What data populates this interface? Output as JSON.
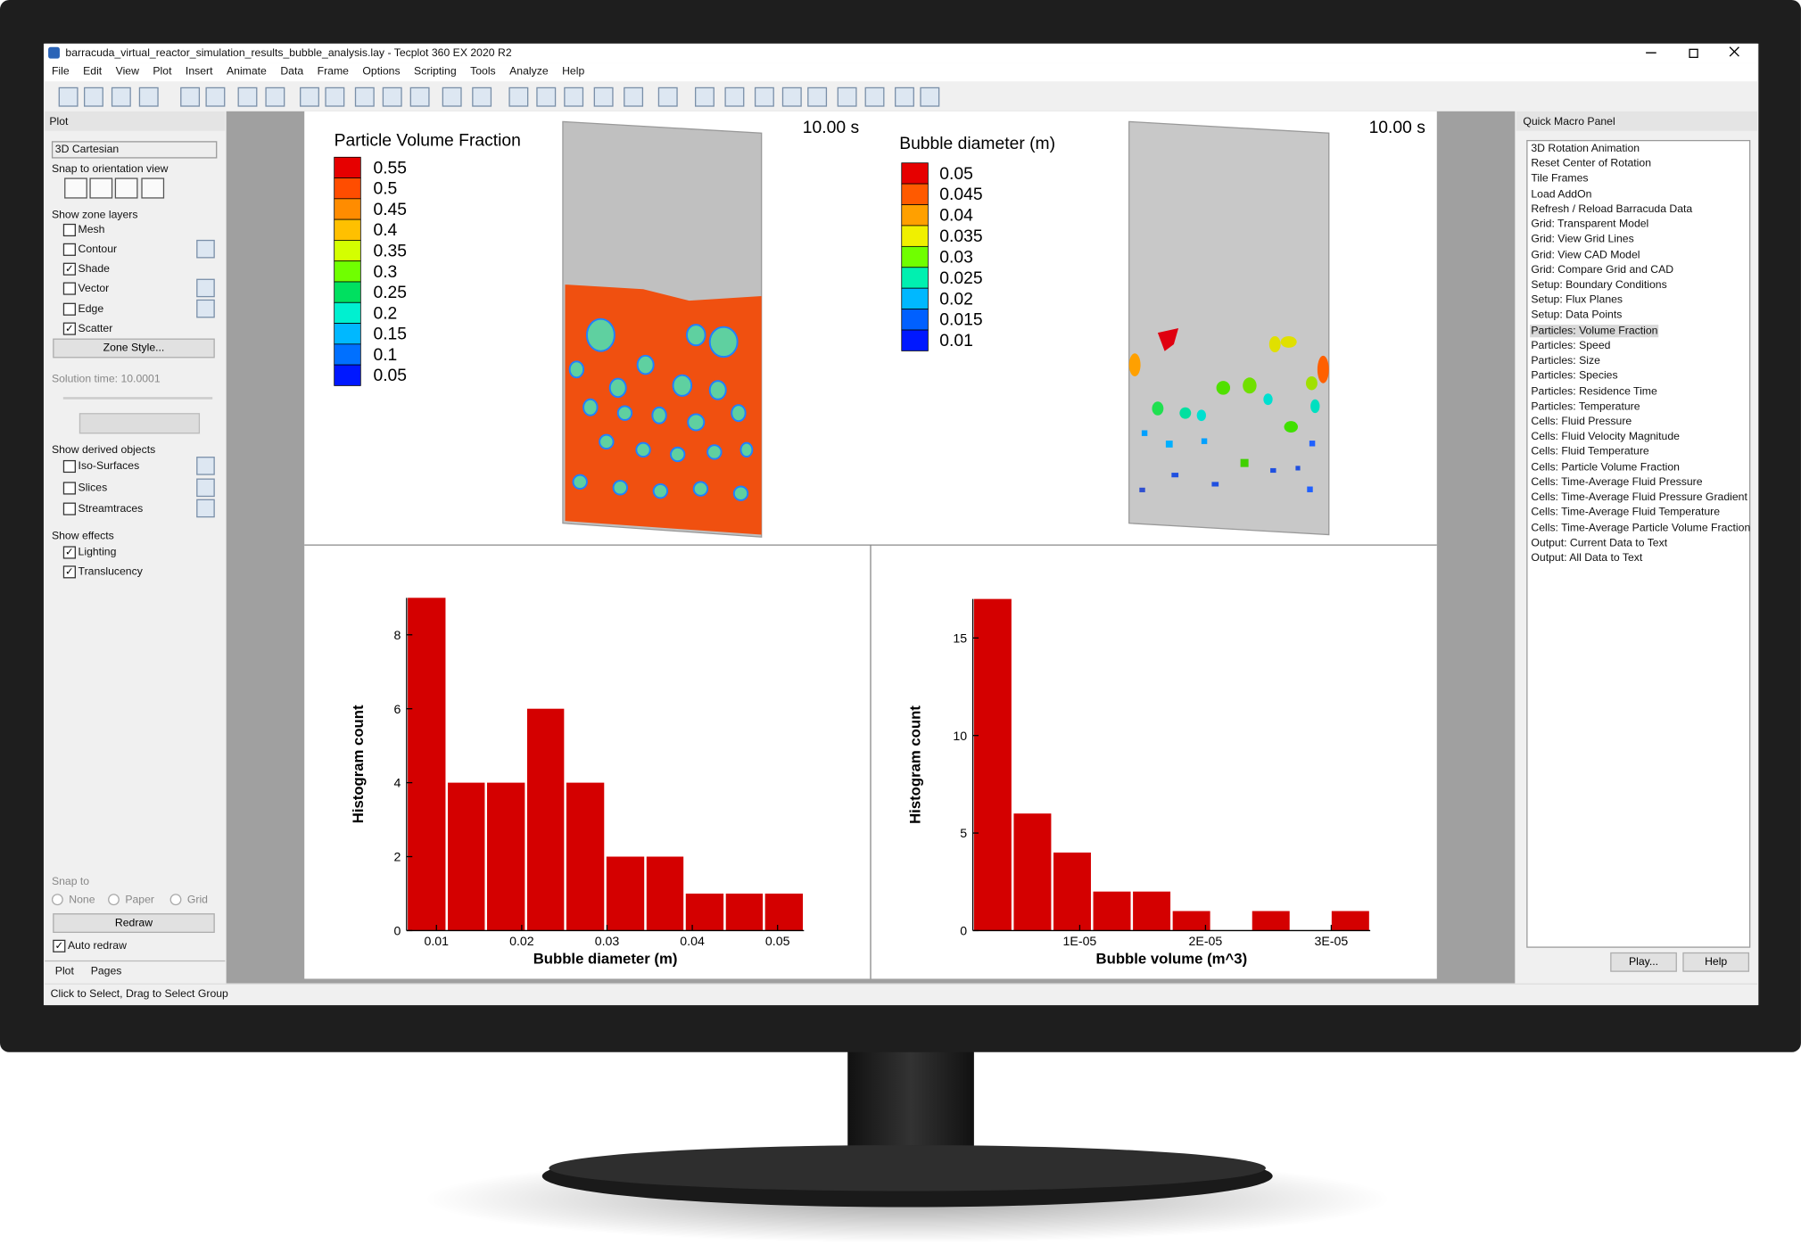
{
  "window": {
    "title": "barracuda_virtual_reactor_simulation_results_bubble_analysis.lay - Tecplot 360 EX 2020 R2"
  },
  "menu": [
    "File",
    "Edit",
    "View",
    "Plot",
    "Insert",
    "Animate",
    "Data",
    "Frame",
    "Options",
    "Scripting",
    "Tools",
    "Analyze",
    "Help"
  ],
  "plot_panel": {
    "title": "Plot",
    "coord_system": "3D Cartesian",
    "snap_label": "Snap to orientation view",
    "zone_layers_label": "Show zone layers",
    "zone_layers": [
      {
        "label": "Mesh",
        "checked": false
      },
      {
        "label": "Contour",
        "checked": false
      },
      {
        "label": "Shade",
        "checked": true
      },
      {
        "label": "Vector",
        "checked": false
      },
      {
        "label": "Edge",
        "checked": false
      },
      {
        "label": "Scatter",
        "checked": true
      }
    ],
    "zone_style": "Zone Style...",
    "solution_time": "Solution time: 10.0001",
    "derived_label": "Show derived objects",
    "derived": [
      {
        "label": "Iso-Surfaces",
        "checked": false
      },
      {
        "label": "Slices",
        "checked": false
      },
      {
        "label": "Streamtraces",
        "checked": false
      }
    ],
    "effects_label": "Show effects",
    "effects": [
      {
        "label": "Lighting",
        "checked": true
      },
      {
        "label": "Translucency",
        "checked": true
      }
    ],
    "snap_to": "Snap to",
    "snap_options": [
      "None",
      "Paper",
      "Grid"
    ],
    "redraw": "Redraw",
    "auto_redraw": {
      "label": "Auto redraw",
      "checked": true
    },
    "tabs": [
      "Plot",
      "Pages"
    ]
  },
  "macro_panel": {
    "title": "Quick Macro Panel",
    "selected": 12,
    "items": [
      "3D Rotation Animation",
      "Reset Center of Rotation",
      "Tile Frames",
      "Load AddOn",
      "Refresh / Reload Barracuda Data",
      "Grid: Transparent Model",
      "Grid: View Grid Lines",
      "Grid: View CAD Model",
      "Grid: Compare Grid and CAD",
      "Setup: Boundary Conditions",
      "Setup: Flux Planes",
      "Setup: Data Points",
      "Particles: Volume Fraction",
      "Particles: Speed",
      "Particles: Size",
      "Particles: Species",
      "Particles: Residence Time",
      "Particles: Temperature",
      "Cells: Fluid Pressure",
      "Cells: Fluid Velocity Magnitude",
      "Cells: Fluid Temperature",
      "Cells: Particle Volume Fraction",
      "Cells: Time-Average Fluid Pressure",
      "Cells: Time-Average Fluid Pressure Gradient",
      "Cells: Time-Average Fluid Temperature",
      "Cells: Time-Average Particle Volume Fraction",
      "Output: Current Data to Text",
      "Output: All Data to Text"
    ],
    "buttons": [
      "Play...",
      "Help"
    ]
  },
  "status": "Click to Select, Drag to Select Group",
  "times": [
    "10.00 s",
    "10.00 s"
  ],
  "legends": [
    {
      "title": "Particle Volume Fraction",
      "levels": [
        0.55,
        0.5,
        0.45,
        0.4,
        0.35,
        0.3,
        0.25,
        0.2,
        0.15,
        0.1,
        0.05
      ],
      "colors": [
        "#e60000",
        "#ff4d00",
        "#ff8c00",
        "#ffc000",
        "#d4ff00",
        "#70ff00",
        "#00e060",
        "#00f0d0",
        "#00b8ff",
        "#0070ff",
        "#0018ff"
      ]
    },
    {
      "title": "Bubble diameter (m)",
      "levels": [
        0.05,
        0.045,
        0.04,
        0.035,
        0.03,
        0.025,
        0.02,
        0.015,
        0.01
      ],
      "colors": [
        "#e60000",
        "#ff5a00",
        "#ffa000",
        "#f0f000",
        "#70ff00",
        "#00f0b0",
        "#00b8ff",
        "#0060ff",
        "#0018ff"
      ]
    }
  ],
  "charts": [
    {
      "type": "histogram",
      "xlabel": "Bubble diameter (m)",
      "ylabel": "Histogram count",
      "color": "#d40000",
      "bins": [
        0.0065,
        0.0112,
        0.0158,
        0.0205,
        0.0251,
        0.0298,
        0.0345,
        0.0391,
        0.0438,
        0.0484,
        0.0531
      ],
      "counts": [
        9,
        4,
        4,
        6,
        4,
        2,
        2,
        1,
        1,
        1
      ],
      "xlim": [
        0.0065,
        0.0531
      ],
      "ylim": [
        0,
        9
      ],
      "xticks": [
        0.01,
        0.02,
        0.03,
        0.04,
        0.05
      ],
      "yticks": [
        0,
        2,
        4,
        6,
        8
      ]
    },
    {
      "type": "histogram",
      "xlabel": "Bubble volume (m^3)",
      "ylabel": "Histogram count",
      "color": "#d40000",
      "bins": [
        1.5e-06,
        4.66e-06,
        7.82e-06,
        1.098e-05,
        1.414e-05,
        1.73e-05,
        2.046e-05,
        2.362e-05,
        2.678e-05,
        2.994e-05,
        3.31e-05
      ],
      "counts": [
        17,
        6,
        4,
        2,
        2,
        1,
        0,
        1,
        0,
        1
      ],
      "xlim": [
        1.5e-06,
        3.31e-05
      ],
      "ylim": [
        0,
        17
      ],
      "xticks": [
        {
          "value": 1e-05,
          "label": "1E-05"
        },
        {
          "value": 2e-05,
          "label": "2E-05"
        },
        {
          "value": 3e-05,
          "label": "3E-05"
        }
      ],
      "yticks": [
        0,
        5,
        10,
        15
      ]
    }
  ]
}
